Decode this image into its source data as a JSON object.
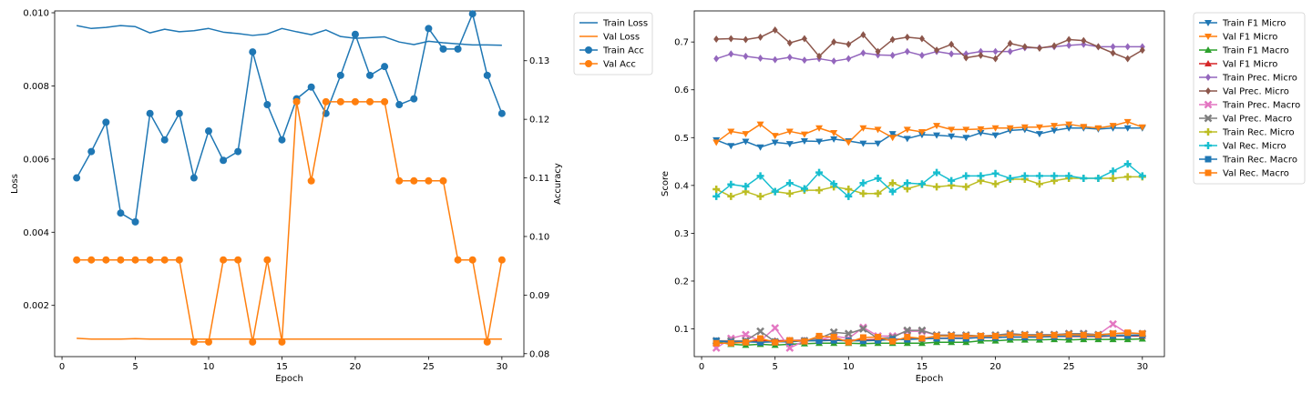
{
  "chart_data": [
    {
      "type": "line",
      "xlabel": "Epoch",
      "ylabel": "Loss",
      "y2label": "Accuracy",
      "xlim": [
        -0.5,
        31.5
      ],
      "ylim": [
        0.0006,
        0.01005
      ],
      "y2lim": [
        0.0795,
        0.1385
      ],
      "x_ticks": [
        0,
        5,
        10,
        15,
        20,
        25,
        30
      ],
      "y_ticks": [
        0.002,
        0.004,
        0.006,
        0.008,
        0.01
      ],
      "y_tick_labels": [
        "0.002",
        "0.004",
        "0.006",
        "0.008",
        "0.010"
      ],
      "y2_ticks": [
        0.08,
        0.09,
        0.1,
        0.11,
        0.12,
        0.13
      ],
      "y2_tick_labels": [
        "0.08",
        "0.09",
        "0.10",
        "0.11",
        "0.12",
        "0.13"
      ],
      "grid": false,
      "legend_placement": "outside-right-top",
      "x": [
        1,
        2,
        3,
        4,
        5,
        6,
        7,
        8,
        9,
        10,
        11,
        12,
        13,
        14,
        15,
        16,
        17,
        18,
        19,
        20,
        21,
        22,
        23,
        24,
        25,
        26,
        27,
        28,
        29,
        30
      ],
      "series": [
        {
          "name": "Train Loss",
          "axis": "left",
          "color": "#1f77b4",
          "marker": "none",
          "values": [
            0.00965,
            0.00957,
            0.0096,
            0.00965,
            0.00962,
            0.00945,
            0.00955,
            0.00948,
            0.00951,
            0.00957,
            0.00947,
            0.00943,
            0.00938,
            0.00942,
            0.00957,
            0.00948,
            0.0094,
            0.00953,
            0.00935,
            0.0093,
            0.00932,
            0.00934,
            0.0092,
            0.00913,
            0.00922,
            0.00918,
            0.00915,
            0.00912,
            0.00912,
            0.00911
          ]
        },
        {
          "name": "Val Loss",
          "axis": "left",
          "color": "#ff7f0e",
          "marker": "none",
          "values": [
            0.0011,
            0.00108,
            0.00108,
            0.00108,
            0.00109,
            0.00108,
            0.00108,
            0.00108,
            0.00108,
            0.00108,
            0.00108,
            0.00108,
            0.00108,
            0.00108,
            0.00108,
            0.00108,
            0.00108,
            0.00108,
            0.00108,
            0.00108,
            0.00108,
            0.00108,
            0.00108,
            0.00108,
            0.00108,
            0.00108,
            0.00108,
            0.00108,
            0.00108,
            0.00108
          ]
        },
        {
          "name": "Train Acc",
          "axis": "right",
          "color": "#1f77b4",
          "marker": "circle",
          "values": [
            0.11,
            0.1145,
            0.1195,
            0.104,
            0.1025,
            0.121,
            0.1165,
            0.121,
            0.11,
            0.118,
            0.113,
            0.1145,
            0.1315,
            0.1225,
            0.1165,
            0.1235,
            0.1255,
            0.121,
            0.1275,
            0.1345,
            0.1275,
            0.129,
            0.1225,
            0.1235,
            0.1355,
            0.132,
            0.132,
            0.138,
            0.1275,
            0.121
          ]
        },
        {
          "name": "Val Acc",
          "axis": "right",
          "color": "#ff7f0e",
          "marker": "circle",
          "values": [
            0.096,
            0.096,
            0.096,
            0.096,
            0.096,
            0.096,
            0.096,
            0.096,
            0.082,
            0.082,
            0.096,
            0.096,
            0.082,
            0.096,
            0.082,
            0.123,
            0.1095,
            0.123,
            0.123,
            0.123,
            0.123,
            0.123,
            0.1095,
            0.1095,
            0.1095,
            0.1095,
            0.096,
            0.096,
            0.082,
            0.096
          ]
        }
      ]
    },
    {
      "type": "line",
      "xlabel": "Epoch",
      "ylabel": "Score",
      "xlim": [
        -0.5,
        31.5
      ],
      "ylim": [
        0.042,
        0.765
      ],
      "x_ticks": [
        0,
        5,
        10,
        15,
        20,
        25,
        30
      ],
      "y_ticks": [
        0.1,
        0.2,
        0.3,
        0.4,
        0.5,
        0.6,
        0.7
      ],
      "y_tick_labels": [
        "0.1",
        "0.2",
        "0.3",
        "0.4",
        "0.5",
        "0.6",
        "0.7"
      ],
      "grid": false,
      "legend_placement": "outside-right-top",
      "x": [
        1,
        2,
        3,
        4,
        5,
        6,
        7,
        8,
        9,
        10,
        11,
        12,
        13,
        14,
        15,
        16,
        17,
        18,
        19,
        20,
        21,
        22,
        23,
        24,
        25,
        26,
        27,
        28,
        29,
        30
      ],
      "series": [
        {
          "name": "Train F1 Micro",
          "color": "#1f77b4",
          "marker": "tri_down",
          "values": [
            0.495,
            0.483,
            0.492,
            0.48,
            0.49,
            0.487,
            0.493,
            0.492,
            0.497,
            0.493,
            0.488,
            0.488,
            0.508,
            0.498,
            0.506,
            0.505,
            0.503,
            0.5,
            0.51,
            0.505,
            0.515,
            0.517,
            0.508,
            0.515,
            0.52,
            0.52,
            0.518,
            0.52,
            0.52,
            0.52
          ]
        },
        {
          "name": "Val F1 Micro",
          "color": "#ff7f0e",
          "marker": "tri_down",
          "values": [
            0.49,
            0.513,
            0.508,
            0.528,
            0.504,
            0.513,
            0.507,
            0.52,
            0.51,
            0.49,
            0.52,
            0.517,
            0.5,
            0.517,
            0.512,
            0.525,
            0.517,
            0.517,
            0.518,
            0.52,
            0.52,
            0.522,
            0.522,
            0.525,
            0.528,
            0.523,
            0.52,
            0.525,
            0.533,
            0.522
          ]
        },
        {
          "name": "Train F1 Macro",
          "color": "#2ca02c",
          "marker": "tri_up",
          "values": [
            0.073,
            0.068,
            0.066,
            0.068,
            0.066,
            0.068,
            0.069,
            0.07,
            0.07,
            0.07,
            0.069,
            0.07,
            0.07,
            0.07,
            0.07,
            0.072,
            0.072,
            0.072,
            0.075,
            0.075,
            0.077,
            0.077,
            0.077,
            0.078,
            0.077,
            0.078,
            0.078,
            0.078,
            0.078,
            0.079
          ]
        },
        {
          "name": "Val F1 Micro",
          "color": "#d62728",
          "marker": "tri_up",
          "values": [
            0.075,
            0.074,
            0.074,
            0.075,
            0.075,
            0.076,
            0.076,
            0.077,
            0.077,
            0.076,
            0.077,
            0.078,
            0.078,
            0.079,
            0.08,
            0.08,
            0.081,
            0.081,
            0.082,
            0.082,
            0.083,
            0.083,
            0.083,
            0.084,
            0.084,
            0.084,
            0.084,
            0.085,
            0.085,
            0.085
          ]
        },
        {
          "name": "Train Prec. Micro",
          "color": "#9467bd",
          "marker": "diamond",
          "values": [
            0.665,
            0.675,
            0.67,
            0.666,
            0.663,
            0.668,
            0.662,
            0.665,
            0.66,
            0.665,
            0.677,
            0.673,
            0.672,
            0.68,
            0.672,
            0.68,
            0.675,
            0.675,
            0.68,
            0.68,
            0.68,
            0.688,
            0.688,
            0.69,
            0.693,
            0.695,
            0.69,
            0.69,
            0.69,
            0.69
          ]
        },
        {
          "name": "Val Prec. Micro",
          "color": "#8c564b",
          "marker": "diamond",
          "values": [
            0.706,
            0.707,
            0.705,
            0.71,
            0.725,
            0.698,
            0.707,
            0.67,
            0.7,
            0.695,
            0.715,
            0.68,
            0.705,
            0.71,
            0.707,
            0.683,
            0.695,
            0.667,
            0.672,
            0.665,
            0.697,
            0.69,
            0.687,
            0.692,
            0.705,
            0.703,
            0.69,
            0.677,
            0.665,
            0.683
          ]
        },
        {
          "name": "Train Prec. Macro",
          "color": "#e377c2",
          "marker": "x",
          "values": [
            0.06,
            0.08,
            0.088,
            0.075,
            0.102,
            0.06,
            0.075,
            0.077,
            0.085,
            0.08,
            0.103,
            0.085,
            0.085,
            0.095,
            0.095,
            0.087,
            0.087,
            0.085,
            0.085,
            0.086,
            0.087,
            0.088,
            0.087,
            0.088,
            0.09,
            0.09,
            0.088,
            0.11,
            0.09,
            0.09
          ]
        },
        {
          "name": "Val Prec. Macro",
          "color": "#7f7f7f",
          "marker": "x",
          "values": [
            0.075,
            0.075,
            0.075,
            0.095,
            0.073,
            0.075,
            0.075,
            0.08,
            0.093,
            0.09,
            0.1,
            0.08,
            0.082,
            0.097,
            0.097,
            0.087,
            0.087,
            0.087,
            0.085,
            0.087,
            0.09,
            0.088,
            0.088,
            0.088,
            0.09,
            0.09,
            0.088,
            0.09,
            0.09,
            0.09
          ]
        },
        {
          "name": "Train Rec. Micro",
          "color": "#bcbd22",
          "marker": "plus",
          "values": [
            0.392,
            0.377,
            0.387,
            0.377,
            0.387,
            0.383,
            0.39,
            0.39,
            0.397,
            0.392,
            0.383,
            0.383,
            0.405,
            0.393,
            0.402,
            0.397,
            0.4,
            0.397,
            0.41,
            0.403,
            0.413,
            0.413,
            0.403,
            0.41,
            0.415,
            0.415,
            0.415,
            0.415,
            0.418,
            0.418
          ]
        },
        {
          "name": "Val Rec. Micro",
          "color": "#17becf",
          "marker": "plus",
          "values": [
            0.377,
            0.402,
            0.398,
            0.42,
            0.387,
            0.405,
            0.393,
            0.427,
            0.403,
            0.377,
            0.405,
            0.415,
            0.387,
            0.405,
            0.403,
            0.427,
            0.41,
            0.42,
            0.42,
            0.425,
            0.415,
            0.42,
            0.42,
            0.42,
            0.42,
            0.415,
            0.415,
            0.43,
            0.445,
            0.42
          ]
        },
        {
          "name": "Train Rec. Macro",
          "color": "#1f77b4",
          "marker": "square",
          "values": [
            0.075,
            0.072,
            0.073,
            0.072,
            0.073,
            0.073,
            0.075,
            0.075,
            0.076,
            0.075,
            0.075,
            0.076,
            0.078,
            0.078,
            0.079,
            0.08,
            0.08,
            0.08,
            0.082,
            0.082,
            0.083,
            0.083,
            0.083,
            0.084,
            0.085,
            0.085,
            0.085,
            0.086,
            0.086,
            0.087
          ]
        },
        {
          "name": "Val Rec. Macro",
          "color": "#ff7f0e",
          "marker": "square",
          "values": [
            0.07,
            0.07,
            0.072,
            0.08,
            0.072,
            0.076,
            0.074,
            0.085,
            0.083,
            0.072,
            0.082,
            0.083,
            0.074,
            0.083,
            0.08,
            0.085,
            0.085,
            0.085,
            0.085,
            0.085,
            0.087,
            0.087,
            0.085,
            0.087,
            0.088,
            0.087,
            0.087,
            0.09,
            0.092,
            0.09
          ]
        }
      ]
    }
  ]
}
